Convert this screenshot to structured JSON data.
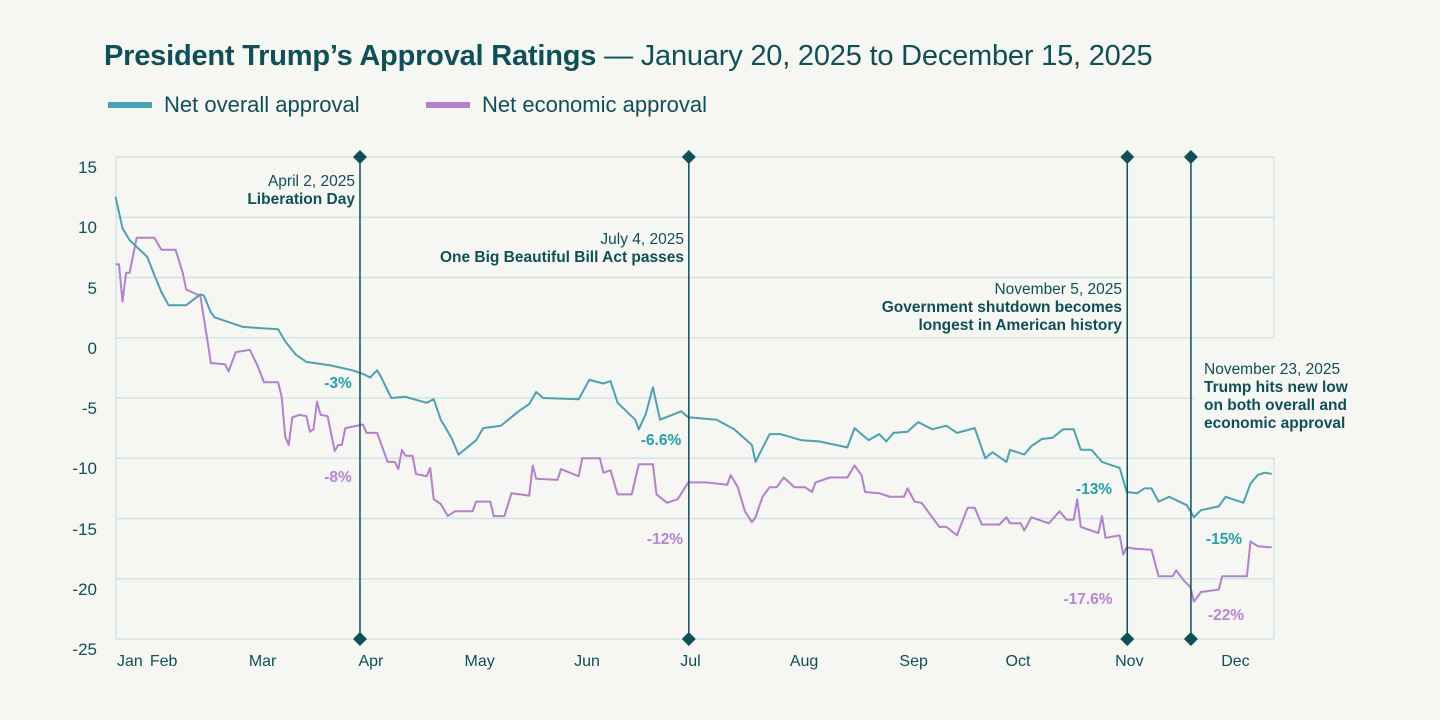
{
  "title": {
    "bold": "President Trump’s Approval Ratings",
    "rest": " — January 20, 2025 to December 15, 2025"
  },
  "legend": [
    {
      "label": "Net overall approval",
      "color": "#4aa3b1"
    },
    {
      "label": "Net economic approval",
      "color": "#b57fd0"
    }
  ],
  "annotations": [
    {
      "date": "2025-04-02",
      "date_label": "April 2, 2025",
      "text": "Liberation Day"
    },
    {
      "date": "2025-07-04",
      "date_label": "July 4, 2025",
      "text": "One Big Beautiful Bill Act passes"
    },
    {
      "date": "2025-11-05",
      "date_label": "November 5, 2025",
      "text": "Government shutdown becomes longest in American history"
    },
    {
      "date": "2025-11-23",
      "date_label": "November 23, 2025",
      "text": "Trump hits new low on both overall and economic approval"
    }
  ],
  "value_labels": [
    {
      "text": "-3%",
      "series": 0
    },
    {
      "text": "-8%",
      "series": 1
    },
    {
      "text": "-6.6%",
      "series": 0
    },
    {
      "text": "-12%",
      "series": 1
    },
    {
      "text": "-13%",
      "series": 0
    },
    {
      "text": "-17.6%",
      "series": 1
    },
    {
      "text": "-15%",
      "series": 0
    },
    {
      "text": "-22%",
      "series": 1
    }
  ],
  "colors": {
    "annotation_line": "#0d5058",
    "grid": "#c9e1e4",
    "overall_label": "#1fa3ad",
    "economic_label": "#b884d6"
  },
  "chart_data": {
    "type": "line",
    "title": "President Trump’s Approval Ratings — January 20, 2025 to December 15, 2025",
    "xlabel": "",
    "ylabel": "",
    "x_range": [
      "2025-01-20",
      "2025-12-15"
    ],
    "ylim": [
      -25,
      15
    ],
    "y_ticks": [
      15,
      10,
      5,
      0,
      -5,
      -10,
      -15,
      -20,
      -25
    ],
    "x_tick_labels": [
      "Jan",
      "Feb",
      "Mar",
      "Apr",
      "May",
      "Jun",
      "Jul",
      "Aug",
      "Sep",
      "Oct",
      "Nov",
      "Dec"
    ],
    "grid": "horizontal",
    "legend": "top-left",
    "series": [
      {
        "name": "Net overall approval",
        "points": [
          [
            "2025-01-22",
            11.7
          ],
          [
            "2025-01-24",
            9.1
          ],
          [
            "2025-01-26",
            8.1
          ],
          [
            "2025-01-31",
            6.7
          ],
          [
            "2025-02-02",
            5.2
          ],
          [
            "2025-02-04",
            3.8
          ],
          [
            "2025-02-06",
            2.7
          ],
          [
            "2025-02-11",
            2.7
          ],
          [
            "2025-02-15",
            3.6
          ],
          [
            "2025-02-16",
            3.5
          ],
          [
            "2025-02-18",
            2.1
          ],
          [
            "2025-02-19",
            1.7
          ],
          [
            "2025-02-24",
            1.2
          ],
          [
            "2025-02-27",
            0.9
          ],
          [
            "2025-03-04",
            0.8
          ],
          [
            "2025-03-09",
            0.7
          ],
          [
            "2025-03-11",
            -0.3
          ],
          [
            "2025-03-14",
            -1.4
          ],
          [
            "2025-03-17",
            -2.0
          ],
          [
            "2025-03-24",
            -2.3
          ],
          [
            "2025-03-30",
            -2.7
          ],
          [
            "2025-04-02",
            -3.0
          ],
          [
            "2025-04-04",
            -3.3
          ],
          [
            "2025-04-06",
            -2.7
          ],
          [
            "2025-04-07",
            -3.2
          ],
          [
            "2025-04-10",
            -5.0
          ],
          [
            "2025-04-14",
            -4.9
          ],
          [
            "2025-04-20",
            -5.4
          ],
          [
            "2025-04-22",
            -5.1
          ],
          [
            "2025-04-24",
            -6.8
          ],
          [
            "2025-04-27",
            -8.3
          ],
          [
            "2025-04-29",
            -9.7
          ],
          [
            "2025-05-04",
            -8.5
          ],
          [
            "2025-05-06",
            -7.5
          ],
          [
            "2025-05-11",
            -7.3
          ],
          [
            "2025-05-16",
            -6.1
          ],
          [
            "2025-05-19",
            -5.5
          ],
          [
            "2025-05-21",
            -4.5
          ],
          [
            "2025-05-23",
            -5.0
          ],
          [
            "2025-06-02",
            -5.1
          ],
          [
            "2025-06-05",
            -3.5
          ],
          [
            "2025-06-09",
            -3.8
          ],
          [
            "2025-06-11",
            -3.6
          ],
          [
            "2025-06-13",
            -5.4
          ],
          [
            "2025-06-18",
            -6.8
          ],
          [
            "2025-06-19",
            -7.6
          ],
          [
            "2025-06-21",
            -6.3
          ],
          [
            "2025-06-23",
            -4.1
          ],
          [
            "2025-06-25",
            -6.8
          ],
          [
            "2025-07-01",
            -6.1
          ],
          [
            "2025-07-03",
            -6.6
          ],
          [
            "2025-07-11",
            -6.8
          ],
          [
            "2025-07-16",
            -7.6
          ],
          [
            "2025-07-21",
            -8.9
          ],
          [
            "2025-07-22",
            -10.3
          ],
          [
            "2025-07-26",
            -8.0
          ],
          [
            "2025-07-29",
            -8.0
          ],
          [
            "2025-08-04",
            -8.5
          ],
          [
            "2025-08-09",
            -8.6
          ],
          [
            "2025-08-17",
            -9.1
          ],
          [
            "2025-08-19",
            -7.5
          ],
          [
            "2025-08-21",
            -8.0
          ],
          [
            "2025-08-23",
            -8.5
          ],
          [
            "2025-08-26",
            -8.0
          ],
          [
            "2025-08-28",
            -8.6
          ],
          [
            "2025-08-30",
            -7.9
          ],
          [
            "2025-09-03",
            -7.8
          ],
          [
            "2025-09-06",
            -7.0
          ],
          [
            "2025-09-10",
            -7.6
          ],
          [
            "2025-09-14",
            -7.3
          ],
          [
            "2025-09-17",
            -7.9
          ],
          [
            "2025-09-22",
            -7.5
          ],
          [
            "2025-09-25",
            -10.0
          ],
          [
            "2025-09-27",
            -9.5
          ],
          [
            "2025-10-01",
            -10.3
          ],
          [
            "2025-10-02",
            -9.3
          ],
          [
            "2025-10-06",
            -9.7
          ],
          [
            "2025-10-08",
            -9.0
          ],
          [
            "2025-10-11",
            -8.4
          ],
          [
            "2025-10-14",
            -8.3
          ],
          [
            "2025-10-17",
            -7.6
          ],
          [
            "2025-10-20",
            -7.6
          ],
          [
            "2025-10-22",
            -9.3
          ],
          [
            "2025-10-25",
            -9.3
          ],
          [
            "2025-10-28",
            -10.3
          ],
          [
            "2025-11-02",
            -10.8
          ],
          [
            "2025-11-04",
            -12.8
          ],
          [
            "2025-11-07",
            -12.9
          ],
          [
            "2025-11-09",
            -12.5
          ],
          [
            "2025-11-11",
            -12.5
          ],
          [
            "2025-11-13",
            -13.6
          ],
          [
            "2025-11-16",
            -13.2
          ],
          [
            "2025-11-21",
            -13.9
          ],
          [
            "2025-11-23",
            -14.9
          ],
          [
            "2025-11-25",
            -14.3
          ],
          [
            "2025-11-30",
            -14.0
          ],
          [
            "2025-12-02",
            -13.2
          ],
          [
            "2025-12-07",
            -13.7
          ],
          [
            "2025-12-09",
            -12.1
          ],
          [
            "2025-12-11",
            -11.4
          ],
          [
            "2025-12-13",
            -11.2
          ],
          [
            "2025-12-15",
            -11.3
          ]
        ]
      },
      {
        "name": "Net economic approval",
        "points": [
          [
            "2025-01-22",
            6.1
          ],
          [
            "2025-01-23",
            6.1
          ],
          [
            "2025-01-24",
            3.0
          ],
          [
            "2025-01-25",
            5.4
          ],
          [
            "2025-01-26",
            5.4
          ],
          [
            "2025-01-28",
            8.3
          ],
          [
            "2025-02-02",
            8.3
          ],
          [
            "2025-02-04",
            7.3
          ],
          [
            "2025-02-08",
            7.3
          ],
          [
            "2025-02-10",
            5.4
          ],
          [
            "2025-02-11",
            4.0
          ],
          [
            "2025-02-14",
            3.6
          ],
          [
            "2025-02-15",
            3.5
          ],
          [
            "2025-02-17",
            -0.2
          ],
          [
            "2025-02-18",
            -2.1
          ],
          [
            "2025-02-22",
            -2.2
          ],
          [
            "2025-02-23",
            -2.8
          ],
          [
            "2025-02-25",
            -1.2
          ],
          [
            "2025-03-01",
            -1.0
          ],
          [
            "2025-03-03",
            -2.2
          ],
          [
            "2025-03-05",
            -3.7
          ],
          [
            "2025-03-09",
            -3.7
          ],
          [
            "2025-03-10",
            -4.9
          ],
          [
            "2025-03-11",
            -8.2
          ],
          [
            "2025-03-12",
            -8.9
          ],
          [
            "2025-03-13",
            -6.6
          ],
          [
            "2025-03-15",
            -6.4
          ],
          [
            "2025-03-17",
            -6.5
          ],
          [
            "2025-03-18",
            -7.8
          ],
          [
            "2025-03-19",
            -7.6
          ],
          [
            "2025-03-20",
            -5.3
          ],
          [
            "2025-03-21",
            -6.4
          ],
          [
            "2025-03-23",
            -6.5
          ],
          [
            "2025-03-25",
            -9.4
          ],
          [
            "2025-03-26",
            -8.9
          ],
          [
            "2025-03-27",
            -8.9
          ],
          [
            "2025-03-28",
            -7.5
          ],
          [
            "2025-04-02",
            -7.2
          ],
          [
            "2025-04-03",
            -7.9
          ],
          [
            "2025-04-06",
            -7.9
          ],
          [
            "2025-04-09",
            -10.3
          ],
          [
            "2025-04-11",
            -10.3
          ],
          [
            "2025-04-12",
            -10.9
          ],
          [
            "2025-04-13",
            -9.3
          ],
          [
            "2025-04-14",
            -9.8
          ],
          [
            "2025-04-16",
            -9.8
          ],
          [
            "2025-04-17",
            -11.3
          ],
          [
            "2025-04-20",
            -11.5
          ],
          [
            "2025-04-21",
            -10.8
          ],
          [
            "2025-04-22",
            -13.4
          ],
          [
            "2025-04-24",
            -13.8
          ],
          [
            "2025-04-26",
            -14.8
          ],
          [
            "2025-04-28",
            -14.4
          ],
          [
            "2025-05-03",
            -14.4
          ],
          [
            "2025-05-04",
            -13.6
          ],
          [
            "2025-05-08",
            -13.6
          ],
          [
            "2025-05-09",
            -14.8
          ],
          [
            "2025-05-12",
            -14.8
          ],
          [
            "2025-05-14",
            -12.9
          ],
          [
            "2025-05-19",
            -13.1
          ],
          [
            "2025-05-20",
            -10.6
          ],
          [
            "2025-05-21",
            -11.7
          ],
          [
            "2025-05-27",
            -11.8
          ],
          [
            "2025-05-28",
            -10.9
          ],
          [
            "2025-06-02",
            -11.5
          ],
          [
            "2025-06-03",
            -10.0
          ],
          [
            "2025-06-08",
            -10.0
          ],
          [
            "2025-06-09",
            -11.2
          ],
          [
            "2025-06-11",
            -11.0
          ],
          [
            "2025-06-13",
            -13.0
          ],
          [
            "2025-06-17",
            -13.0
          ],
          [
            "2025-06-19",
            -10.5
          ],
          [
            "2025-06-23",
            -10.5
          ],
          [
            "2025-06-24",
            -13.0
          ],
          [
            "2025-06-27",
            -13.7
          ],
          [
            "2025-06-30",
            -13.4
          ],
          [
            "2025-07-03",
            -12.0
          ],
          [
            "2025-07-08",
            -12.0
          ],
          [
            "2025-07-14",
            -12.2
          ],
          [
            "2025-07-15",
            -11.4
          ],
          [
            "2025-07-17",
            -12.4
          ],
          [
            "2025-07-19",
            -14.4
          ],
          [
            "2025-07-21",
            -15.3
          ],
          [
            "2025-07-22",
            -14.9
          ],
          [
            "2025-07-24",
            -13.2
          ],
          [
            "2025-07-26",
            -12.4
          ],
          [
            "2025-07-28",
            -12.4
          ],
          [
            "2025-07-30",
            -11.6
          ],
          [
            "2025-08-02",
            -12.4
          ],
          [
            "2025-08-05",
            -12.4
          ],
          [
            "2025-08-07",
            -12.8
          ],
          [
            "2025-08-08",
            -12.0
          ],
          [
            "2025-08-12",
            -11.6
          ],
          [
            "2025-08-17",
            -11.6
          ],
          [
            "2025-08-19",
            -10.6
          ],
          [
            "2025-08-21",
            -11.4
          ],
          [
            "2025-08-22",
            -12.8
          ],
          [
            "2025-08-26",
            -12.9
          ],
          [
            "2025-08-29",
            -13.2
          ],
          [
            "2025-09-02",
            -13.2
          ],
          [
            "2025-09-03",
            -12.5
          ],
          [
            "2025-09-05",
            -13.6
          ],
          [
            "2025-09-07",
            -13.7
          ],
          [
            "2025-09-12",
            -15.7
          ],
          [
            "2025-09-14",
            -15.7
          ],
          [
            "2025-09-17",
            -16.4
          ],
          [
            "2025-09-20",
            -14.1
          ],
          [
            "2025-09-22",
            -14.1
          ],
          [
            "2025-09-24",
            -15.5
          ],
          [
            "2025-09-29",
            -15.5
          ],
          [
            "2025-10-01",
            -14.9
          ],
          [
            "2025-10-02",
            -15.4
          ],
          [
            "2025-10-05",
            -15.4
          ],
          [
            "2025-10-06",
            -16.0
          ],
          [
            "2025-10-08",
            -14.9
          ],
          [
            "2025-10-13",
            -15.4
          ],
          [
            "2025-10-16",
            -14.4
          ],
          [
            "2025-10-18",
            -15.1
          ],
          [
            "2025-10-20",
            -15.1
          ],
          [
            "2025-10-21",
            -13.4
          ],
          [
            "2025-10-22",
            -15.7
          ],
          [
            "2025-10-27",
            -16.2
          ],
          [
            "2025-10-28",
            -14.8
          ],
          [
            "2025-10-29",
            -16.6
          ],
          [
            "2025-11-02",
            -16.4
          ],
          [
            "2025-11-03",
            -18.0
          ],
          [
            "2025-11-04",
            -17.4
          ],
          [
            "2025-11-06",
            -17.5
          ],
          [
            "2025-11-11",
            -17.6
          ],
          [
            "2025-11-13",
            -19.8
          ],
          [
            "2025-11-17",
            -19.8
          ],
          [
            "2025-11-18",
            -19.3
          ],
          [
            "2025-11-20",
            -20.1
          ],
          [
            "2025-11-22",
            -20.7
          ],
          [
            "2025-11-23",
            -21.9
          ],
          [
            "2025-11-25",
            -21.1
          ],
          [
            "2025-11-30",
            -20.9
          ],
          [
            "2025-12-01",
            -19.8
          ],
          [
            "2025-12-08",
            -19.8
          ],
          [
            "2025-12-09",
            -16.9
          ],
          [
            "2025-12-11",
            -17.3
          ],
          [
            "2025-12-15",
            -17.4
          ]
        ]
      }
    ]
  }
}
